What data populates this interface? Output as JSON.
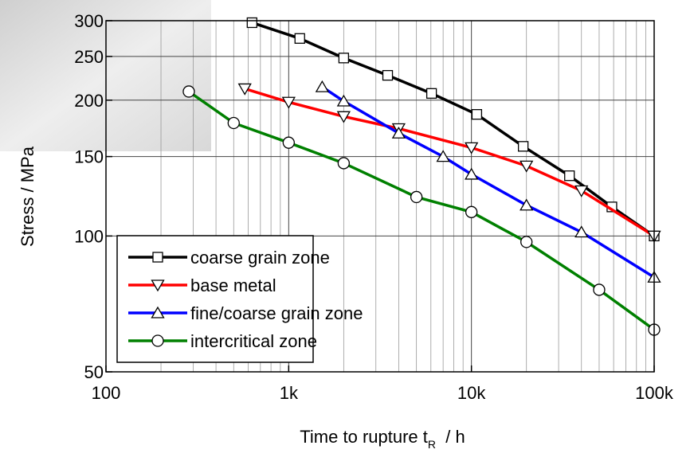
{
  "chart_data": {
    "type": "line",
    "xlabel": {
      "text": "Time to rupture t",
      "subscript": "R",
      "suffix": "  / h"
    },
    "ylabel": "Stress  / MPa",
    "xscale": "log",
    "yscale": "log",
    "xlim": [
      100,
      100000
    ],
    "ylim": [
      50,
      300
    ],
    "xticks": [
      100,
      {
        "value": 1000,
        "label": "1k"
      },
      {
        "value": 10000,
        "label": "10k"
      },
      {
        "value": 100000,
        "label": "100k"
      }
    ],
    "xminorticks": [
      200,
      300,
      400,
      500,
      600,
      700,
      800,
      900,
      2000,
      3000,
      4000,
      5000,
      6000,
      7000,
      8000,
      9000,
      20000,
      30000,
      40000,
      50000,
      60000,
      70000,
      80000,
      90000
    ],
    "yticks": [
      50,
      100,
      150,
      200,
      250,
      300
    ],
    "grid": true,
    "legend": "lower left",
    "series": [
      {
        "name": "coarse grain zone",
        "color": "#000000",
        "marker": "square",
        "x": [
          630,
          1150,
          2000,
          3480,
          6050,
          10700,
          19200,
          34400,
          58700,
          100000
        ],
        "values": [
          297,
          274,
          248,
          227,
          207,
          186,
          158,
          136,
          116,
          100
        ]
      },
      {
        "name": "base metal",
        "color": "#ff0000",
        "marker": "triangle-down",
        "x": [
          575,
          1000,
          2000,
          4000,
          10000,
          20000,
          40000,
          100000
        ],
        "values": [
          212,
          198,
          184,
          173,
          157,
          143,
          126,
          100
        ]
      },
      {
        "name": "fine/coarse grain zone",
        "color": "#0000ff",
        "marker": "triangle-up",
        "x": [
          1525,
          2000,
          4000,
          7000,
          10000,
          20000,
          40000,
          100000
        ],
        "values": [
          214,
          199,
          169,
          150,
          137,
          117,
          102,
          81
        ]
      },
      {
        "name": "intercritical zone",
        "color": "#008000",
        "marker": "circle",
        "x": [
          284,
          500,
          1000,
          2000,
          5000,
          10000,
          20000,
          50000,
          100000
        ],
        "values": [
          209,
          178,
          161,
          145,
          122,
          113,
          97,
          76,
          62
        ]
      }
    ]
  }
}
